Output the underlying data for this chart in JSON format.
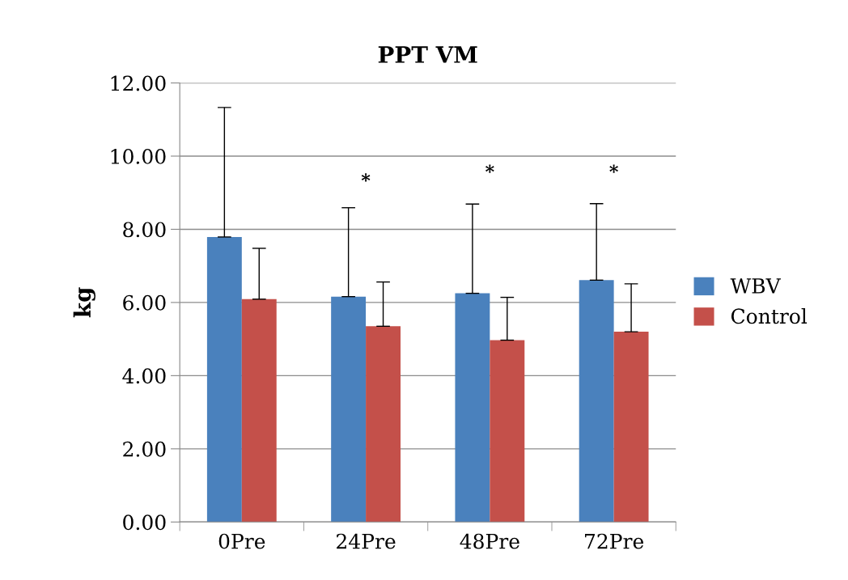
{
  "chart_data": {
    "type": "bar",
    "title": "PPT VM",
    "ylabel": "kg",
    "categories": [
      "0Pre",
      "24Pre",
      "48Pre",
      "72Pre"
    ],
    "series": [
      {
        "name": "WBV",
        "color": "#4a81bd",
        "values": [
          7.79,
          6.16,
          6.25,
          6.61
        ],
        "errors": [
          [
            7.79,
            11.33
          ],
          [
            6.16,
            8.59
          ],
          [
            6.25,
            8.69
          ],
          [
            6.61,
            8.7
          ]
        ]
      },
      {
        "name": "Control",
        "color": "#c4504a",
        "values": [
          6.09,
          5.35,
          4.97,
          5.2
        ],
        "errors": [
          [
            6.09,
            7.48
          ],
          [
            5.35,
            6.56
          ],
          [
            4.97,
            6.14
          ],
          [
            5.2,
            6.51
          ]
        ]
      }
    ],
    "ylim": [
      0,
      12
    ],
    "yticks": [
      {
        "value": 0,
        "label": "0.00"
      },
      {
        "value": 2,
        "label": "2.00"
      },
      {
        "value": 4,
        "label": "4.00"
      },
      {
        "value": 6,
        "label": "6.00"
      },
      {
        "value": 8,
        "label": "8.00"
      },
      {
        "value": 10,
        "label": "10.00"
      },
      {
        "value": 12,
        "label": "12.00"
      }
    ],
    "grid": "y",
    "legend": "right",
    "annotations": [
      "*",
      "*",
      "*"
    ]
  }
}
